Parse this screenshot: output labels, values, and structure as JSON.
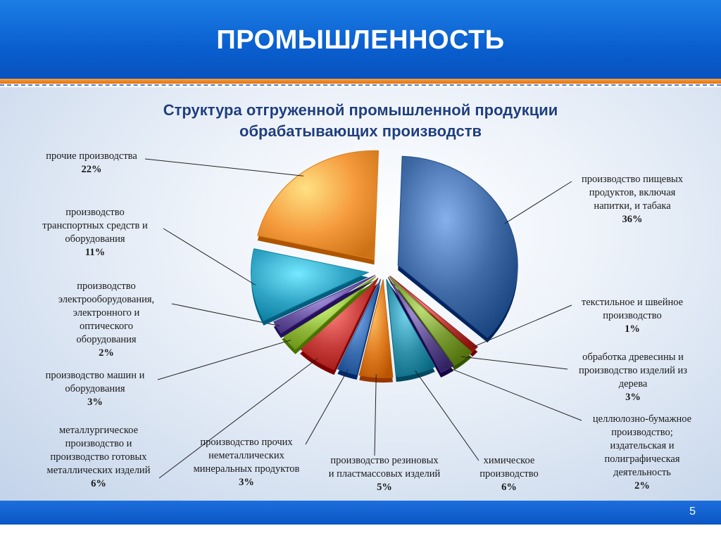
{
  "slide": {
    "title": "ПРОМЫШЛЕННОСТЬ",
    "page_number": "5"
  },
  "colors": {
    "header_blue": "#0a5fcf",
    "accent_orange": "#f08a24",
    "title_navy": "#1f3f7f"
  },
  "chart_data": {
    "type": "pie",
    "title_line1": "Структура отгруженной промышленной продукции",
    "title_line2": "обрабатывающих производств",
    "unit": "%",
    "slices": [
      {
        "label_lines": [
          "производство пищевых",
          "продуктов, включая",
          "напитки, и табака"
        ],
        "value": 36,
        "pct_text": "36%",
        "color": "#3f6aa5"
      },
      {
        "label_lines": [
          "текстильное и швейное",
          "производство"
        ],
        "value": 1,
        "pct_text": "1%",
        "color": "#b33a35"
      },
      {
        "label_lines": [
          "обработка древесины и",
          "производство изделий из",
          "дерева"
        ],
        "value": 3,
        "pct_text": "3%",
        "color": "#7a9a34"
      },
      {
        "label_lines": [
          "целлюлозно-бумажное",
          "производство;",
          "издательская и",
          "полиграфическая",
          "деятельность"
        ],
        "value": 2,
        "pct_text": "2%",
        "color": "#5c4b8c"
      },
      {
        "label_lines": [
          "химическое",
          "производство"
        ],
        "value": 6,
        "pct_text": "6%",
        "color": "#2f8fa8"
      },
      {
        "label_lines": [
          "производство резиновых",
          "и пластмассовых изделий"
        ],
        "value": 5,
        "pct_text": "5%",
        "color": "#e07d22"
      },
      {
        "label_lines": [
          "производство прочих",
          "неметаллических",
          "минеральных продуктов"
        ],
        "value": 3,
        "pct_text": "3%",
        "color": "#3b6fb2"
      },
      {
        "label_lines": [
          "металлургическое",
          "производство и",
          "производство готовых",
          "металлических изделий"
        ],
        "value": 6,
        "pct_text": "6%",
        "color": "#c43b38"
      },
      {
        "label_lines": [
          "производство машин и",
          "оборудования"
        ],
        "value": 3,
        "pct_text": "3%",
        "color": "#8fb83a"
      },
      {
        "label_lines": [
          "производство",
          "электрооборудования,",
          "электронного и",
          "оптического",
          "оборудования"
        ],
        "value": 2,
        "pct_text": "2%",
        "color": "#6a56a3"
      },
      {
        "label_lines": [
          "производство",
          "транспортных средств и",
          "оборудования"
        ],
        "value": 11,
        "pct_text": "11%",
        "color": "#2fa3c4"
      },
      {
        "label_lines": [
          "прочие производства"
        ],
        "value": 22,
        "pct_text": "22%",
        "color": "#f59b3d"
      }
    ]
  }
}
